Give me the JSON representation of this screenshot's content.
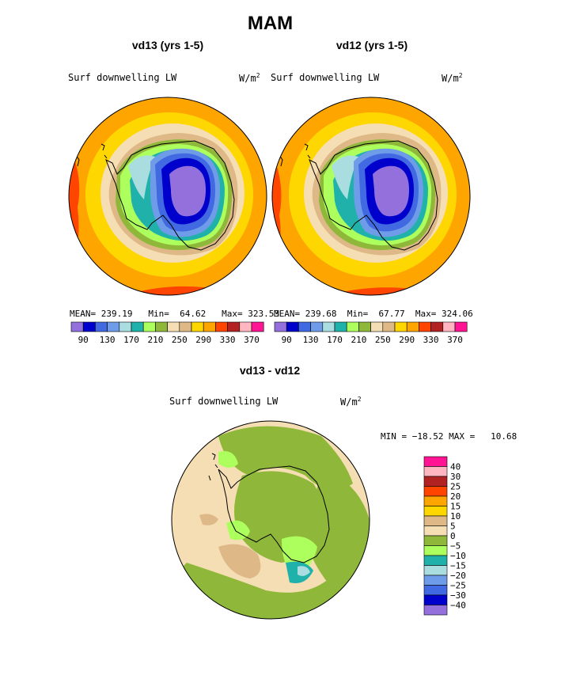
{
  "season_title": "MAM",
  "panels": [
    {
      "title": "vd13 (yrs 1-5)",
      "field_label": "Surf downwelling LW",
      "units_base": "W/m",
      "units_exp": "2",
      "stats": {
        "mean_label": "MEAN=",
        "mean": "239.19",
        "min_label": "Min=",
        "min": "64.62",
        "max_label": "Max=",
        "max": "323.53"
      }
    },
    {
      "title": "vd12 (yrs 1-5)",
      "field_label": "Surf downwelling LW",
      "units_base": "W/m",
      "units_exp": "2",
      "stats": {
        "mean_label": "MEAN=",
        "mean": "239.68",
        "min_label": "Min=",
        "min": "67.77",
        "max_label": "Max=",
        "max": "324.06"
      }
    }
  ],
  "diff_panel": {
    "title": "vd13 - vd12",
    "field_label": "Surf downwelling LW",
    "units_base": "W/m",
    "units_exp": "2",
    "min_max_text": "MIN = −18.52 MAX =   10.68"
  },
  "chart_data": [
    {
      "type": "heatmap",
      "projection": "south-polar-stereographic",
      "title": "vd13 (yrs 1-5)",
      "colorbar_labels": [
        "90",
        "130",
        "170",
        "210",
        "250",
        "290",
        "330",
        "370"
      ],
      "levels": [
        70,
        90,
        110,
        130,
        150,
        170,
        190,
        210,
        230,
        250,
        270,
        290,
        310,
        330,
        350,
        370
      ],
      "colors": [
        "#9370db",
        "#0000cd",
        "#4169e1",
        "#6f9ce8",
        "#a9dde0",
        "#20b2aa",
        "#adff5e",
        "#8fb83a",
        "#f5deb3",
        "#deb887",
        "#ffd700",
        "#ffa500",
        "#ff4500",
        "#b22222",
        "#ffb6c1",
        "#ff1493"
      ],
      "mean": 239.19,
      "min": 64.62,
      "max": 323.53
    },
    {
      "type": "heatmap",
      "projection": "south-polar-stereographic",
      "title": "vd12 (yrs 1-5)",
      "colorbar_labels": [
        "90",
        "130",
        "170",
        "210",
        "250",
        "290",
        "330",
        "370"
      ],
      "levels": [
        70,
        90,
        110,
        130,
        150,
        170,
        190,
        210,
        230,
        250,
        270,
        290,
        310,
        330,
        350,
        370
      ],
      "colors": [
        "#9370db",
        "#0000cd",
        "#4169e1",
        "#6f9ce8",
        "#a9dde0",
        "#20b2aa",
        "#adff5e",
        "#8fb83a",
        "#f5deb3",
        "#deb887",
        "#ffd700",
        "#ffa500",
        "#ff4500",
        "#b22222",
        "#ffb6c1",
        "#ff1493"
      ],
      "mean": 239.68,
      "min": 67.77,
      "max": 324.06
    },
    {
      "type": "heatmap",
      "projection": "south-polar-stereographic",
      "title": "vd13 - vd12",
      "colorbar_labels": [
        "40",
        "30",
        "25",
        "20",
        "15",
        "10",
        "5",
        "0",
        "−5",
        "−10",
        "−15",
        "−20",
        "−25",
        "−30",
        "−40"
      ],
      "colors_top_to_bottom": [
        "#ff1493",
        "#ffb6c1",
        "#b22222",
        "#ff4500",
        "#ffa500",
        "#ffd700",
        "#deb887",
        "#f5deb3",
        "#8fb83a",
        "#adff5e",
        "#20b2aa",
        "#a9dde0",
        "#6f9ce8",
        "#4169e1",
        "#0000cd",
        "#9370db"
      ],
      "min": -18.52,
      "max": 10.68
    }
  ]
}
